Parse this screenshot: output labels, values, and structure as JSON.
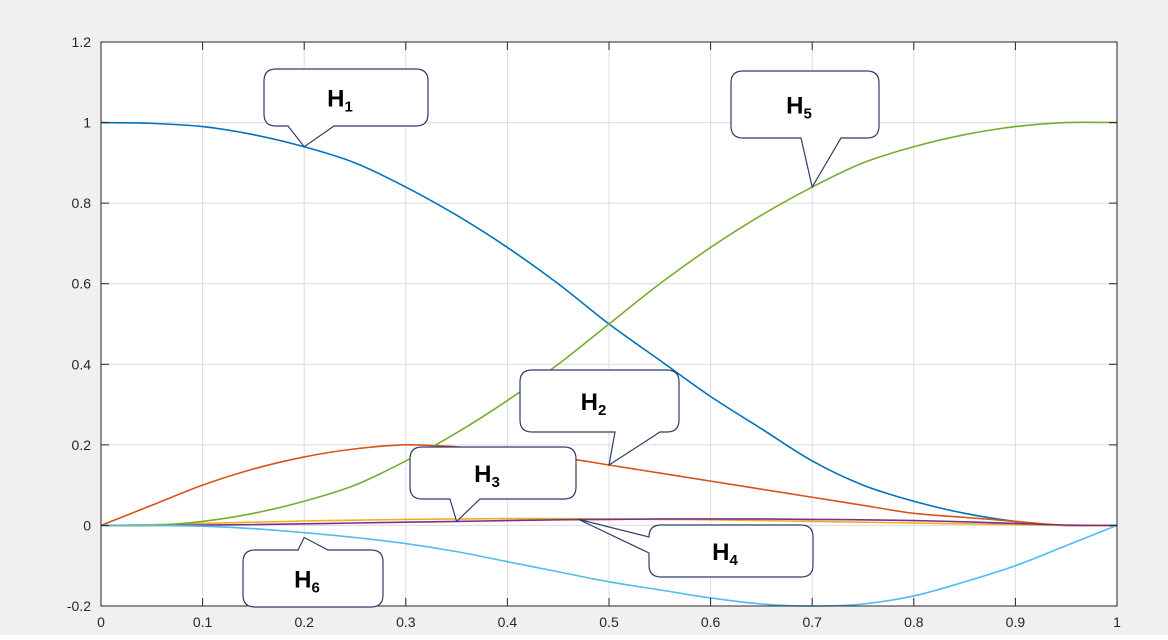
{
  "chart_data": {
    "type": "line",
    "title": "",
    "xlabel": "",
    "ylabel": "",
    "xlim": [
      0,
      1
    ],
    "ylim": [
      -0.2,
      1.2
    ],
    "grid": true,
    "x_ticks": [
      "0",
      "0.1",
      "0.2",
      "0.3",
      "0.4",
      "0.5",
      "0.6",
      "0.7",
      "0.8",
      "0.9",
      "1"
    ],
    "y_ticks": [
      "-0.2",
      "0",
      "0.2",
      "0.4",
      "0.6",
      "0.8",
      "1",
      "1.2"
    ],
    "x": [
      0,
      0.05,
      0.1,
      0.15,
      0.2,
      0.25,
      0.3,
      0.35,
      0.4,
      0.45,
      0.5,
      0.55,
      0.6,
      0.65,
      0.7,
      0.75,
      0.8,
      0.85,
      0.9,
      0.95,
      1
    ],
    "series": [
      {
        "color": "#0072bd",
        "values": [
          1.0,
          0.998,
          0.99,
          0.97,
          0.94,
          0.9,
          0.84,
          0.77,
          0.69,
          0.6,
          0.5,
          0.41,
          0.32,
          0.24,
          0.16,
          0.1,
          0.06,
          0.03,
          0.01,
          0.0,
          0.0
        ]
      },
      {
        "color": "#d95319",
        "values": [
          0.0,
          0.05,
          0.1,
          0.14,
          0.17,
          0.19,
          0.2,
          0.195,
          0.185,
          0.17,
          0.15,
          0.13,
          0.11,
          0.09,
          0.07,
          0.05,
          0.03,
          0.02,
          0.01,
          0.0,
          0.0
        ]
      },
      {
        "color": "#edb120",
        "values": [
          0.0,
          0.002,
          0.005,
          0.008,
          0.011,
          0.013,
          0.015,
          0.016,
          0.017,
          0.017,
          0.016,
          0.015,
          0.014,
          0.012,
          0.01,
          0.008,
          0.006,
          0.004,
          0.002,
          0.0,
          0.0
        ]
      },
      {
        "color": "#7e2f8e",
        "values": [
          0.0,
          0.0,
          0.001,
          0.002,
          0.004,
          0.006,
          0.008,
          0.01,
          0.012,
          0.014,
          0.015,
          0.016,
          0.016,
          0.016,
          0.015,
          0.014,
          0.012,
          0.009,
          0.005,
          0.001,
          0.0
        ]
      },
      {
        "color": "#77ac30",
        "values": [
          0.0,
          0.0,
          0.01,
          0.03,
          0.06,
          0.1,
          0.16,
          0.23,
          0.31,
          0.4,
          0.5,
          0.6,
          0.69,
          0.77,
          0.84,
          0.9,
          0.94,
          0.97,
          0.99,
          1.0,
          1.0
        ]
      },
      {
        "color": "#4dbeee",
        "values": [
          0.0,
          0.0,
          -0.002,
          -0.008,
          -0.018,
          -0.03,
          -0.045,
          -0.065,
          -0.09,
          -0.115,
          -0.14,
          -0.16,
          -0.18,
          -0.195,
          -0.2,
          -0.195,
          -0.175,
          -0.14,
          -0.1,
          -0.05,
          0.0
        ]
      }
    ],
    "annotations": [
      {
        "label": "H",
        "sub": "1",
        "target": [
          0.2,
          0.94
        ]
      },
      {
        "label": "H",
        "sub": "2",
        "target": [
          0.5,
          0.15
        ]
      },
      {
        "label": "H",
        "sub": "3",
        "target": [
          0.35,
          0.01
        ]
      },
      {
        "label": "H",
        "sub": "4",
        "target": [
          0.47,
          0.015
        ]
      },
      {
        "label": "H",
        "sub": "5",
        "target": [
          0.7,
          0.84
        ]
      },
      {
        "label": "H",
        "sub": "6",
        "target": [
          0.2,
          -0.03
        ]
      }
    ]
  }
}
